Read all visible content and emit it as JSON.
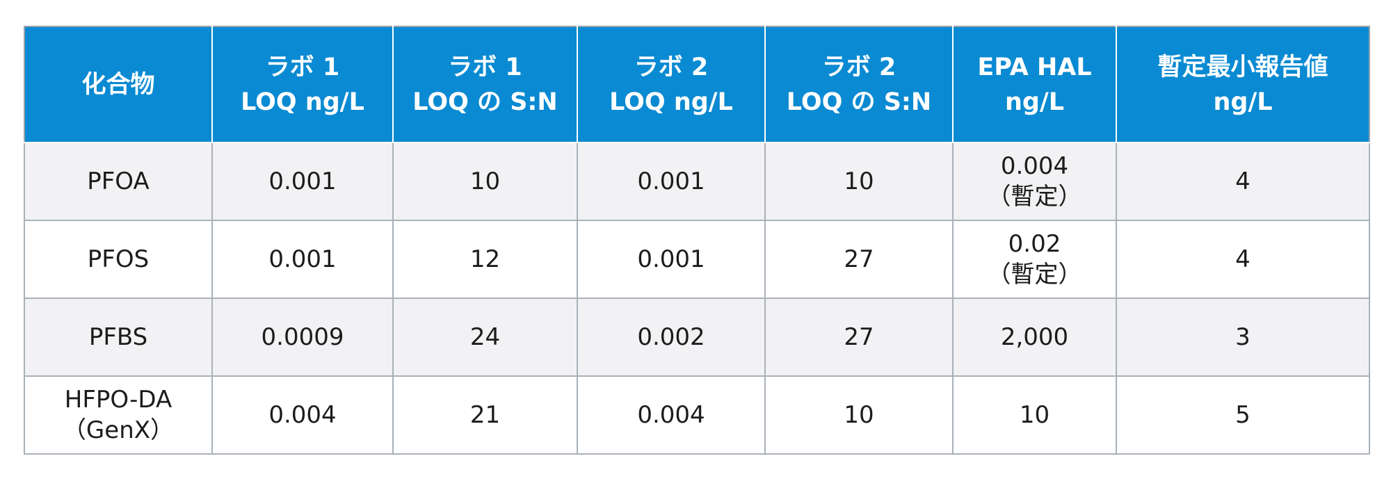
{
  "table": {
    "headers": [
      [
        "化合物"
      ],
      [
        "ラボ 1",
        "LOQ ng/L"
      ],
      [
        "ラボ 1",
        "LOQ の S:N"
      ],
      [
        "ラボ 2",
        "LOQ ng/L"
      ],
      [
        "ラボ 2",
        "LOQ の S:N"
      ],
      [
        "EPA HAL",
        "ng/L"
      ],
      [
        "暫定最小報告値",
        "ng/L"
      ]
    ],
    "rows": [
      [
        [
          "PFOA"
        ],
        [
          "0.001"
        ],
        [
          "10"
        ],
        [
          "0.001"
        ],
        [
          "10"
        ],
        [
          "0.004",
          "（暫定）"
        ],
        [
          "4"
        ]
      ],
      [
        [
          "PFOS"
        ],
        [
          "0.001"
        ],
        [
          "12"
        ],
        [
          "0.001"
        ],
        [
          "27"
        ],
        [
          "0.02",
          "（暫定）"
        ],
        [
          "4"
        ]
      ],
      [
        [
          "PFBS"
        ],
        [
          "0.0009"
        ],
        [
          "24"
        ],
        [
          "0.002"
        ],
        [
          "27"
        ],
        [
          "2,000"
        ],
        [
          "3"
        ]
      ],
      [
        [
          "HFPO-DA",
          "（GenX）"
        ],
        [
          "0.004"
        ],
        [
          "21"
        ],
        [
          "0.004"
        ],
        [
          "10"
        ],
        [
          "10"
        ],
        [
          "5"
        ]
      ]
    ]
  },
  "colors": {
    "header_bg": "#0a8ad2",
    "header_text": "#ffffff",
    "row_alt_bg": "#f2f2f4",
    "row_bg": "#ffffff",
    "border": "#a9b1b8"
  }
}
